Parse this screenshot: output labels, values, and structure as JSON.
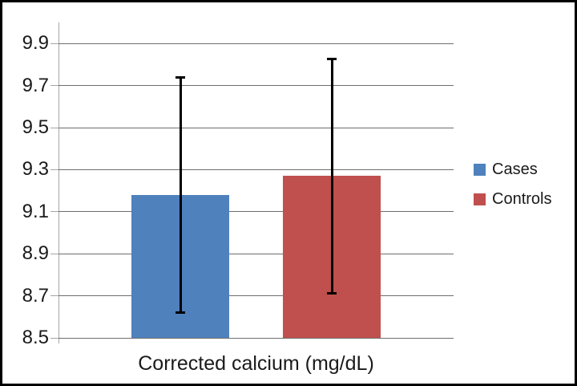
{
  "chart_data": {
    "type": "bar",
    "title": "",
    "xlabel": "Corrected calcium (mg/dL)",
    "ylabel": "",
    "categories": [
      "Corrected calcium (mg/dL)"
    ],
    "series": [
      {
        "name": "Cases",
        "color": "#4F81BD",
        "values": [
          9.18
        ],
        "error_low": [
          8.62
        ],
        "error_high": [
          9.74
        ]
      },
      {
        "name": "Controls",
        "color": "#C0504D",
        "values": [
          9.27
        ],
        "error_low": [
          8.71
        ],
        "error_high": [
          9.83
        ]
      }
    ],
    "ylim": [
      8.5,
      10.0
    ],
    "yticks": [
      "8.5",
      "8.7",
      "8.9",
      "9.1",
      "9.3",
      "9.5",
      "9.7",
      "9.9"
    ],
    "grid": "horizontal",
    "legend_position": "right",
    "error_bar_color": "#000000",
    "gridline_color": "#6e6e6e",
    "axis_line_color": "#a6a6a6",
    "border_color": "#000000"
  }
}
